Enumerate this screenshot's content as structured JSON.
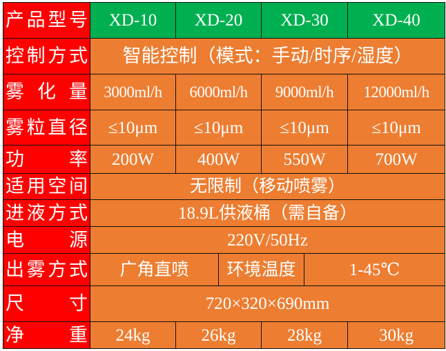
{
  "colors": {
    "header": "#00b050",
    "label": "#ff0000",
    "cell": "#ed7d31",
    "text": "#ffffff"
  },
  "header": {
    "label": "产品型号",
    "models": [
      "XD-10",
      "XD-20",
      "XD-30",
      "XD-40"
    ]
  },
  "rows": {
    "control": {
      "label": "控制方式",
      "value": "智能控制（模式：手动/时序/湿度）"
    },
    "atomization": {
      "label": "雾 化 量",
      "values": [
        "3000ml/h",
        "6000ml/h",
        "9000ml/h",
        "12000ml/h"
      ]
    },
    "particle": {
      "label": "雾粒直径",
      "values": [
        "≤10μm",
        "≤10μm",
        "≤10μm",
        "≤10μm"
      ]
    },
    "power": {
      "label": "功 率",
      "values": [
        "200W",
        "400W",
        "550W",
        "700W"
      ]
    },
    "space": {
      "label": "适用空间",
      "value": "无限制（移动喷雾）"
    },
    "supply": {
      "label": "进液方式",
      "value": "18.9L供液桶（需自备）"
    },
    "source": {
      "label": "电 源",
      "value": "220V/50Hz"
    },
    "spray": {
      "label": "出雾方式",
      "value": "广角直喷",
      "env_label": "环境温度",
      "env_value": "1-45℃"
    },
    "size": {
      "label": "尺 寸",
      "value": "720×320×690mm"
    },
    "weight": {
      "label": "净 重",
      "values": [
        "24kg",
        "26kg",
        "28kg",
        "30kg"
      ]
    }
  }
}
